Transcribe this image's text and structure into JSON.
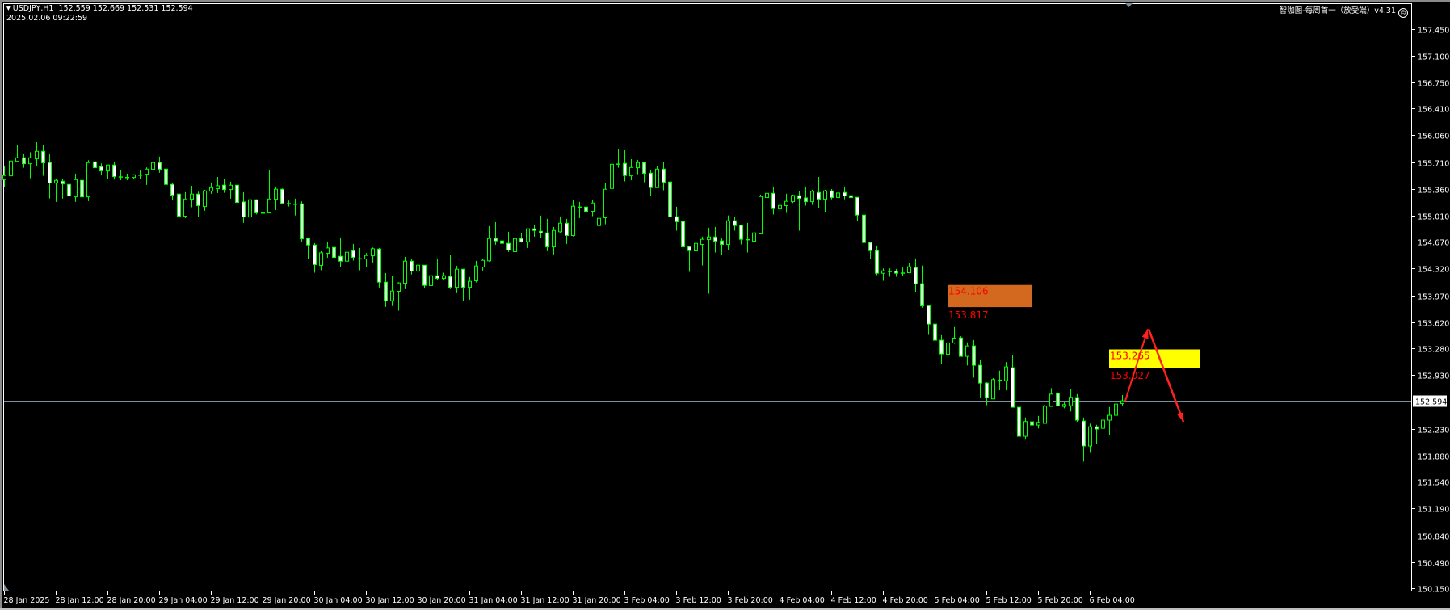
{
  "header": {
    "symbol": "USDJPY,H1",
    "ohlc_text": "152.559 152.669 152.531 152.594",
    "server_time": "2025.02.06 09:22:59",
    "indicator_label": "智咖图-每周首一（放受端）v4.31",
    "indicator_icon": "sad-face-icon"
  },
  "colors": {
    "background": "#000000",
    "candle_outline": "#00ff00",
    "bear_body": "#ffffff",
    "bull_body": "#000000",
    "grid_axis": "#ffffff",
    "bid_line": "#7f8c99",
    "zone_upper": "#d2691e",
    "zone_lower": "#ffff00",
    "zone_text": "#ff0000",
    "arrow": "#ff2020"
  },
  "chart_data": {
    "type": "candlestick",
    "symbol": "USDJPY",
    "timeframe": "H1",
    "ylim": [
      150.15,
      157.45
    ],
    "grid": false,
    "y_ticks": [
      "157.450",
      "157.100",
      "156.750",
      "156.410",
      "156.060",
      "155.710",
      "155.360",
      "155.010",
      "154.670",
      "154.320",
      "153.970",
      "153.620",
      "153.280",
      "152.930",
      "152.594",
      "152.230",
      "151.880",
      "151.540",
      "151.190",
      "150.840",
      "150.490",
      "150.150"
    ],
    "current_price": "152.594",
    "x_ticks": [
      "28 Jan 2025",
      "28 Jan 12:00",
      "28 Jan 20:00",
      "29 Jan 04:00",
      "29 Jan 12:00",
      "29 Jan 20:00",
      "30 Jan 04:00",
      "30 Jan 12:00",
      "30 Jan 20:00",
      "31 Jan 04:00",
      "31 Jan 12:00",
      "31 Jan 20:00",
      "3 Feb 04:00",
      "3 Feb 12:00",
      "3 Feb 20:00",
      "4 Feb 04:00",
      "4 Feb 12:00",
      "4 Feb 20:00",
      "5 Feb 04:00",
      "5 Feb 12:00",
      "5 Feb 20:00",
      "6 Feb 04:00"
    ],
    "ohlc_fields": [
      "open",
      "high",
      "low",
      "close"
    ],
    "ohlc": [
      [
        155.481,
        155.664,
        155.383,
        155.534
      ],
      [
        155.53,
        155.734,
        155.471,
        155.724
      ],
      [
        155.72,
        155.938,
        155.71,
        155.766
      ],
      [
        155.766,
        155.822,
        155.636,
        155.688
      ],
      [
        155.688,
        155.839,
        155.499,
        155.766
      ],
      [
        155.752,
        155.969,
        155.653,
        155.85
      ],
      [
        155.85,
        155.927,
        155.53,
        155.699
      ],
      [
        155.703,
        155.811,
        155.235,
        155.436
      ],
      [
        155.436,
        155.488,
        155.19,
        155.471
      ],
      [
        155.46,
        155.488,
        155.232,
        155.425
      ],
      [
        155.418,
        155.485,
        155.232,
        155.267
      ],
      [
        155.256,
        155.559,
        155.19,
        155.481
      ],
      [
        155.471,
        155.559,
        155.032,
        155.256
      ],
      [
        155.256,
        155.734,
        155.2,
        155.703
      ],
      [
        155.713,
        155.748,
        155.559,
        155.636
      ],
      [
        155.65,
        155.692,
        155.537,
        155.594
      ],
      [
        155.594,
        155.671,
        155.495,
        155.671
      ],
      [
        155.671,
        155.717,
        155.481,
        155.52
      ],
      [
        155.52,
        155.601,
        155.474,
        155.52
      ],
      [
        155.513,
        155.559,
        155.474,
        155.513
      ],
      [
        155.509,
        155.544,
        155.495,
        155.544
      ],
      [
        155.544,
        155.611,
        155.495,
        155.544
      ],
      [
        155.551,
        155.639,
        155.411,
        155.618
      ],
      [
        155.615,
        155.794,
        155.569,
        155.703
      ],
      [
        155.703,
        155.78,
        155.569,
        155.615
      ],
      [
        155.618,
        155.618,
        155.306,
        155.418
      ],
      [
        155.418,
        155.436,
        155.211,
        155.278
      ],
      [
        155.292,
        155.292,
        154.979,
        155.004
      ],
      [
        155.004,
        155.316,
        154.979,
        155.228
      ],
      [
        155.225,
        155.4,
        155.12,
        155.292
      ],
      [
        155.292,
        155.323,
        154.99,
        155.141
      ],
      [
        155.13,
        155.348,
        155.074,
        155.334
      ],
      [
        155.33,
        155.443,
        155.295,
        155.376
      ],
      [
        155.362,
        155.516,
        155.306,
        155.4
      ],
      [
        155.408,
        155.495,
        155.309,
        155.351
      ],
      [
        155.351,
        155.453,
        155.232,
        155.408
      ],
      [
        155.408,
        155.436,
        155.162,
        155.183
      ],
      [
        155.19,
        155.316,
        154.916,
        154.993
      ],
      [
        154.993,
        155.232,
        154.961,
        155.218
      ],
      [
        155.218,
        155.225,
        155.028,
        155.046
      ],
      [
        155.049,
        155.169,
        154.979,
        155.049
      ],
      [
        155.046,
        155.611,
        155.046,
        155.228
      ],
      [
        155.225,
        155.39,
        155.084,
        155.355
      ],
      [
        155.355,
        155.365,
        155.165,
        155.172
      ],
      [
        155.172,
        155.207,
        155.13,
        155.172
      ],
      [
        155.165,
        155.232,
        155.014,
        155.165
      ],
      [
        155.165,
        155.197,
        154.663,
        154.709
      ],
      [
        154.712,
        154.712,
        154.442,
        154.628
      ],
      [
        154.628,
        154.652,
        154.266,
        154.371
      ],
      [
        154.361,
        154.547,
        154.298,
        154.526
      ],
      [
        154.519,
        154.674,
        154.463,
        154.589
      ],
      [
        154.596,
        154.628,
        154.403,
        154.466
      ],
      [
        154.48,
        154.726,
        154.336,
        154.417
      ],
      [
        154.417,
        154.631,
        154.347,
        154.533
      ],
      [
        154.554,
        154.642,
        154.424,
        154.466
      ],
      [
        154.452,
        154.589,
        154.298,
        154.452
      ],
      [
        154.445,
        154.522,
        154.336,
        154.491
      ],
      [
        154.487,
        154.596,
        154.4,
        154.579
      ],
      [
        154.575,
        154.589,
        154.073,
        154.143
      ],
      [
        154.143,
        154.263,
        153.82,
        153.901
      ],
      [
        153.901,
        154.22,
        153.831,
        154.027
      ],
      [
        154.024,
        154.143,
        153.771,
        154.133
      ],
      [
        154.129,
        154.473,
        154.052,
        154.417
      ],
      [
        154.417,
        154.442,
        154.242,
        154.287
      ],
      [
        154.287,
        154.484,
        154.287,
        154.364
      ],
      [
        154.364,
        154.364,
        154.062,
        154.101
      ],
      [
        154.098,
        154.452,
        153.978,
        154.227
      ],
      [
        154.227,
        154.452,
        154.168,
        154.192
      ],
      [
        154.192,
        154.266,
        154.168,
        154.227
      ],
      [
        154.217,
        154.494,
        154.052,
        154.076
      ],
      [
        154.076,
        154.357,
        153.999,
        154.312
      ],
      [
        154.312,
        154.312,
        153.894,
        154.076
      ],
      [
        154.076,
        154.21,
        153.915,
        154.154
      ],
      [
        154.161,
        154.421,
        154.14,
        154.354
      ],
      [
        154.34,
        154.449,
        154.294,
        154.428
      ],
      [
        154.421,
        154.874,
        154.41,
        154.712
      ],
      [
        154.712,
        154.926,
        154.631,
        154.681
      ],
      [
        154.681,
        154.758,
        154.558,
        154.649
      ],
      [
        154.649,
        154.8,
        154.537,
        154.561
      ],
      [
        154.54,
        154.712,
        154.463,
        154.712
      ],
      [
        154.712,
        154.779,
        154.659,
        154.67
      ],
      [
        154.67,
        154.839,
        154.589,
        154.839
      ],
      [
        154.839,
        154.884,
        154.737,
        154.817
      ],
      [
        154.807,
        155.011,
        154.716,
        154.786
      ],
      [
        154.786,
        154.969,
        154.547,
        154.603
      ],
      [
        154.603,
        154.863,
        154.505,
        154.817
      ],
      [
        154.8,
        155.0,
        154.789,
        154.912
      ],
      [
        154.912,
        154.969,
        154.642,
        154.751
      ],
      [
        154.751,
        155.211,
        154.74,
        155.134
      ],
      [
        155.127,
        155.19,
        154.979,
        155.127
      ],
      [
        155.123,
        155.2,
        155.039,
        155.067
      ],
      [
        155.067,
        155.211,
        155.004,
        155.176
      ],
      [
        154.881,
        155.105,
        154.719,
        154.976
      ],
      [
        154.983,
        155.432,
        154.898,
        155.355
      ],
      [
        155.365,
        155.79,
        155.33,
        155.681
      ],
      [
        155.688,
        155.875,
        155.636,
        155.688
      ],
      [
        155.692,
        155.864,
        155.457,
        155.534
      ],
      [
        155.53,
        155.748,
        155.474,
        155.639
      ],
      [
        155.636,
        155.738,
        155.551,
        155.703
      ],
      [
        155.703,
        155.703,
        155.446,
        155.562
      ],
      [
        155.566,
        155.601,
        155.267,
        155.376
      ],
      [
        155.376,
        155.653,
        155.376,
        155.618
      ],
      [
        155.618,
        155.706,
        155.341,
        155.446
      ],
      [
        155.45,
        155.46,
        154.997,
        154.997
      ],
      [
        154.997,
        155.127,
        154.814,
        154.93
      ],
      [
        154.933,
        154.958,
        154.582,
        154.603
      ],
      [
        154.607,
        154.617,
        154.277,
        154.554
      ],
      [
        154.551,
        154.832,
        154.393,
        154.649
      ],
      [
        154.635,
        154.737,
        154.361,
        154.702
      ],
      [
        154.698,
        154.853,
        153.992,
        154.733
      ],
      [
        154.733,
        154.863,
        154.53,
        154.677
      ],
      [
        154.681,
        154.716,
        154.498,
        154.635
      ],
      [
        154.635,
        155.014,
        154.561,
        154.944
      ],
      [
        154.944,
        154.99,
        154.814,
        154.881
      ],
      [
        154.884,
        154.895,
        154.635,
        154.702
      ],
      [
        154.702,
        154.916,
        154.53,
        154.702
      ],
      [
        154.677,
        154.863,
        154.656,
        154.786
      ],
      [
        154.772,
        155.285,
        154.772,
        155.26
      ],
      [
        155.246,
        155.4,
        155.172,
        155.302
      ],
      [
        155.302,
        155.39,
        155.025,
        155.102
      ],
      [
        155.098,
        155.242,
        155.025,
        155.144
      ],
      [
        155.141,
        155.295,
        155.046,
        155.197
      ],
      [
        155.193,
        155.285,
        155.176,
        155.274
      ],
      [
        155.271,
        155.327,
        154.814,
        155.235
      ],
      [
        155.242,
        155.39,
        155.141,
        155.193
      ],
      [
        155.193,
        155.348,
        155.151,
        155.327
      ],
      [
        155.313,
        155.516,
        155.109,
        155.225
      ],
      [
        155.225,
        155.348,
        155.056,
        155.334
      ],
      [
        155.334,
        155.358,
        155.225,
        155.246
      ],
      [
        155.246,
        155.327,
        155.13,
        155.306
      ],
      [
        155.313,
        155.39,
        155.225,
        155.267
      ],
      [
        155.271,
        155.379,
        155.235,
        155.246
      ],
      [
        155.25,
        155.25,
        154.944,
        155.018
      ],
      [
        155.018,
        155.018,
        154.519,
        154.66
      ],
      [
        154.66,
        154.66,
        154.445,
        154.554
      ],
      [
        154.554,
        154.621,
        154.235,
        154.259
      ],
      [
        154.259,
        154.322,
        154.161,
        154.291
      ],
      [
        154.287,
        154.322,
        154.214,
        154.287
      ],
      [
        154.287,
        154.315,
        154.214,
        154.259
      ],
      [
        154.266,
        154.333,
        154.224,
        154.266
      ],
      [
        154.266,
        154.389,
        154.266,
        154.344
      ],
      [
        154.333,
        154.452,
        154.013,
        154.122
      ],
      [
        154.122,
        154.358,
        153.81,
        153.834
      ],
      [
        153.834,
        153.834,
        153.455,
        153.595
      ],
      [
        153.595,
        153.631,
        153.16,
        153.385
      ],
      [
        153.385,
        153.451,
        153.076,
        153.206
      ],
      [
        153.202,
        153.388,
        153.097,
        153.35
      ],
      [
        153.35,
        153.557,
        153.339,
        153.413
      ],
      [
        153.416,
        153.437,
        153.174,
        153.174
      ],
      [
        153.174,
        153.357,
        153.055,
        153.311
      ],
      [
        153.311,
        153.388,
        152.897,
        153.058
      ],
      [
        153.058,
        153.125,
        152.633,
        152.826
      ],
      [
        152.826,
        152.837,
        152.538,
        152.637
      ],
      [
        152.619,
        152.89,
        152.619,
        152.872
      ],
      [
        152.868,
        152.988,
        152.732,
        152.868
      ],
      [
        152.858,
        153.1,
        152.732,
        153.037
      ],
      [
        153.027,
        153.195,
        152.51,
        152.51
      ],
      [
        152.51,
        152.581,
        152.099,
        152.131
      ],
      [
        152.131,
        152.377,
        152.099,
        152.324
      ],
      [
        152.321,
        152.43,
        152.247,
        152.278
      ],
      [
        152.278,
        152.398,
        152.233,
        152.314
      ],
      [
        152.3,
        152.538,
        152.3,
        152.524
      ],
      [
        152.521,
        152.76,
        152.521,
        152.682
      ],
      [
        152.689,
        152.703,
        152.531,
        152.531
      ],
      [
        152.521,
        152.584,
        152.496,
        152.545
      ],
      [
        152.531,
        152.746,
        152.454,
        152.64
      ],
      [
        152.637,
        152.682,
        152.321,
        152.342
      ],
      [
        152.331,
        152.377,
        151.801,
        152.005
      ],
      [
        152.005,
        152.296,
        151.917,
        152.257
      ],
      [
        152.257,
        152.282,
        152.036,
        152.226
      ],
      [
        152.236,
        152.454,
        152.12,
        152.342
      ],
      [
        152.342,
        152.514,
        152.149,
        152.405
      ],
      [
        152.405,
        152.581,
        152.394,
        152.552
      ],
      [
        152.559,
        152.669,
        152.531,
        152.594
      ]
    ],
    "zones": [
      {
        "upper": 154.106,
        "lower": 153.817,
        "upper_label": "154.106",
        "lower_label": "153.817",
        "color": "#d2691e"
      },
      {
        "upper": 153.265,
        "lower": 153.027,
        "upper_label": "153.265",
        "lower_label": "153.027",
        "color": "#ffff00"
      }
    ],
    "arrows": [
      {
        "direction": "up",
        "from_price": 152.594,
        "to_price": 153.53
      },
      {
        "direction": "down",
        "from_price": 153.53,
        "to_price": 152.32
      }
    ]
  }
}
